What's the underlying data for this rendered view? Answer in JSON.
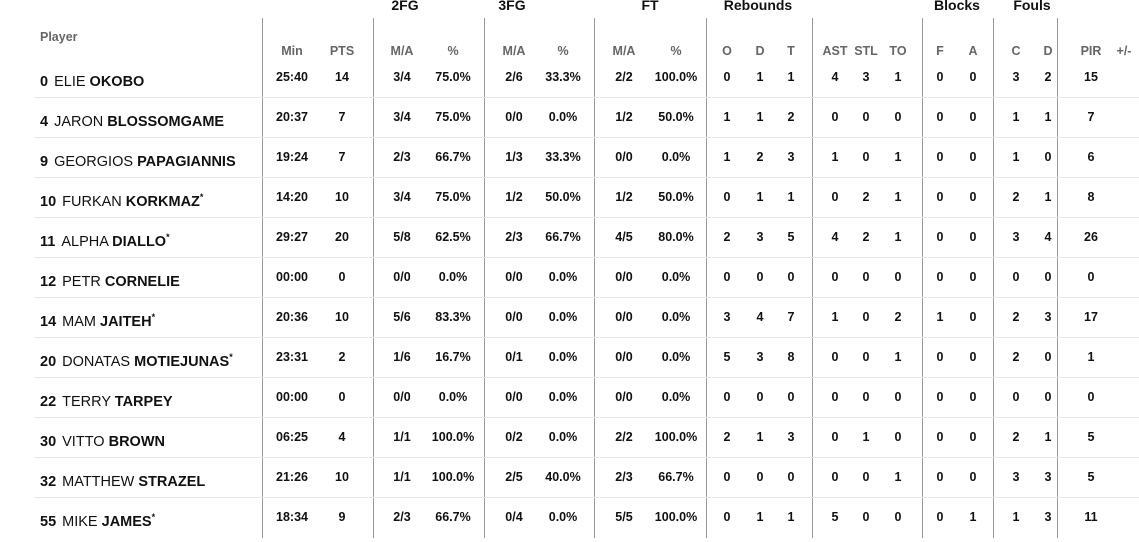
{
  "groups": {
    "fg2": "2FG",
    "fg3": "3FG",
    "ft": "FT",
    "reb": "Rebounds",
    "blk": "Blocks",
    "fouls": "Fouls"
  },
  "headers": {
    "player": "Player",
    "min": "Min",
    "pts": "PTS",
    "ma2": "M/A",
    "p2": "%",
    "ma3": "M/A",
    "p3": "%",
    "maft": "M/A",
    "pft": "%",
    "o": "O",
    "d": "D",
    "t": "T",
    "ast": "AST",
    "stl": "STL",
    "to": "TO",
    "bf": "F",
    "ba": "A",
    "fc": "C",
    "fd": "D",
    "pir": "PIR",
    "pm": "+/-"
  },
  "players": [
    {
      "num": "0",
      "first": "ELIE",
      "last": "OKOBO",
      "star": "",
      "stats": [
        "25:40",
        "14",
        "3/4",
        "75.0%",
        "2/6",
        "33.3%",
        "2/2",
        "100.0%",
        "0",
        "1",
        "1",
        "4",
        "3",
        "1",
        "0",
        "0",
        "3",
        "2",
        "15"
      ]
    },
    {
      "num": "4",
      "first": "JARON",
      "last": "BLOSSOMGAME",
      "star": "",
      "stats": [
        "20:37",
        "7",
        "3/4",
        "75.0%",
        "0/0",
        "0.0%",
        "1/2",
        "50.0%",
        "1",
        "1",
        "2",
        "0",
        "0",
        "0",
        "0",
        "0",
        "1",
        "1",
        "7"
      ]
    },
    {
      "num": "9",
      "first": "GEORGIOS",
      "last": "PAPAGIANNIS",
      "star": "",
      "stats": [
        "19:24",
        "7",
        "2/3",
        "66.7%",
        "1/3",
        "33.3%",
        "0/0",
        "0.0%",
        "1",
        "2",
        "3",
        "1",
        "0",
        "1",
        "0",
        "0",
        "1",
        "0",
        "6"
      ]
    },
    {
      "num": "10",
      "first": "FURKAN",
      "last": "KORKMAZ",
      "star": "*",
      "stats": [
        "14:20",
        "10",
        "3/4",
        "75.0%",
        "1/2",
        "50.0%",
        "1/2",
        "50.0%",
        "0",
        "1",
        "1",
        "0",
        "2",
        "1",
        "0",
        "0",
        "2",
        "1",
        "8"
      ]
    },
    {
      "num": "11",
      "first": "ALPHA",
      "last": "DIALLO",
      "star": "*",
      "stats": [
        "29:27",
        "20",
        "5/8",
        "62.5%",
        "2/3",
        "66.7%",
        "4/5",
        "80.0%",
        "2",
        "3",
        "5",
        "4",
        "2",
        "1",
        "0",
        "0",
        "3",
        "4",
        "26"
      ]
    },
    {
      "num": "12",
      "first": "PETR",
      "last": "CORNELIE",
      "star": "",
      "stats": [
        "00:00",
        "0",
        "0/0",
        "0.0%",
        "0/0",
        "0.0%",
        "0/0",
        "0.0%",
        "0",
        "0",
        "0",
        "0",
        "0",
        "0",
        "0",
        "0",
        "0",
        "0",
        "0"
      ]
    },
    {
      "num": "14",
      "first": "MAM",
      "last": "JAITEH",
      "star": "*",
      "stats": [
        "20:36",
        "10",
        "5/6",
        "83.3%",
        "0/0",
        "0.0%",
        "0/0",
        "0.0%",
        "3",
        "4",
        "7",
        "1",
        "0",
        "2",
        "1",
        "0",
        "2",
        "3",
        "17"
      ]
    },
    {
      "num": "20",
      "first": "DONATAS",
      "last": "MOTIEJUNAS",
      "star": "*",
      "stats": [
        "23:31",
        "2",
        "1/6",
        "16.7%",
        "0/1",
        "0.0%",
        "0/0",
        "0.0%",
        "5",
        "3",
        "8",
        "0",
        "0",
        "1",
        "0",
        "0",
        "2",
        "0",
        "1"
      ]
    },
    {
      "num": "22",
      "first": "TERRY",
      "last": "TARPEY",
      "star": "",
      "stats": [
        "00:00",
        "0",
        "0/0",
        "0.0%",
        "0/0",
        "0.0%",
        "0/0",
        "0.0%",
        "0",
        "0",
        "0",
        "0",
        "0",
        "0",
        "0",
        "0",
        "0",
        "0",
        "0"
      ]
    },
    {
      "num": "30",
      "first": "VITTO",
      "last": "BROWN",
      "star": "",
      "stats": [
        "06:25",
        "4",
        "1/1",
        "100.0%",
        "0/2",
        "0.0%",
        "2/2",
        "100.0%",
        "2",
        "1",
        "3",
        "0",
        "1",
        "0",
        "0",
        "0",
        "2",
        "1",
        "5"
      ]
    },
    {
      "num": "32",
      "first": "MATTHEW",
      "last": "STRAZEL",
      "star": "",
      "stats": [
        "21:26",
        "10",
        "1/1",
        "100.0%",
        "2/5",
        "40.0%",
        "2/3",
        "66.7%",
        "0",
        "0",
        "0",
        "0",
        "0",
        "1",
        "0",
        "0",
        "3",
        "3",
        "5"
      ]
    },
    {
      "num": "55",
      "first": "MIKE",
      "last": "JAMES",
      "star": "*",
      "stats": [
        "18:34",
        "9",
        "2/3",
        "66.7%",
        "0/4",
        "0.0%",
        "5/5",
        "100.0%",
        "0",
        "1",
        "1",
        "5",
        "0",
        "0",
        "0",
        "1",
        "1",
        "3",
        "11"
      ]
    }
  ]
}
